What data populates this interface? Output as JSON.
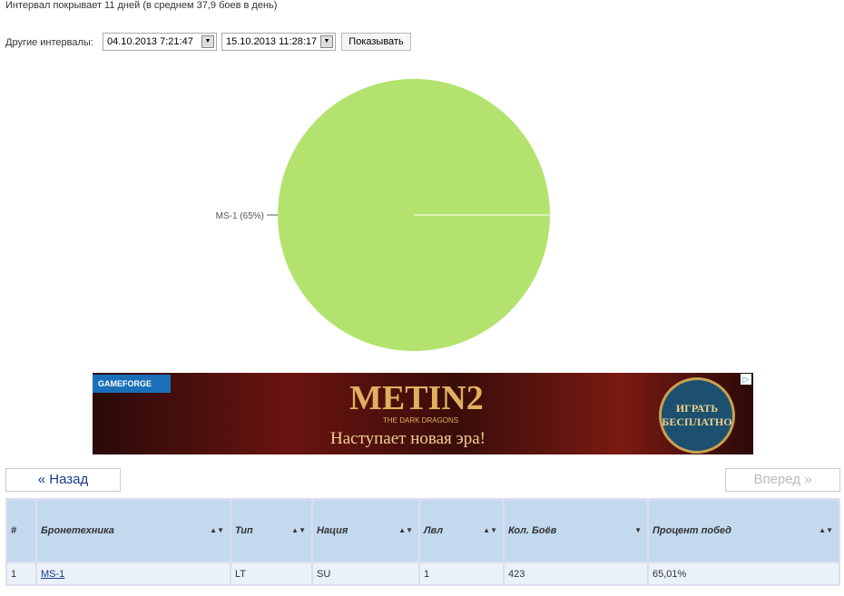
{
  "summary": "Интервал покрывает 11 дней (в среднем 37,9 боев в день)",
  "intervals": {
    "label": "Другие интервалы:",
    "from": "04.10.2013 7:21:47",
    "to": "15.10.2013 11:28:17",
    "show_button": "Показывать"
  },
  "chart_data": {
    "type": "pie",
    "slices": [
      {
        "label": "MS-1 (65%)",
        "value": 100,
        "color": "#b3e36e"
      }
    ]
  },
  "ad": {
    "brand": "GAMEFORGE",
    "title": "METIN2",
    "subtitle": "THE DARK DRAGONS",
    "slogan": "Наступает новая эра!",
    "cta": "ИГРАТЬ БЕСПЛАТНО"
  },
  "nav": {
    "back": "« Назад",
    "forward": "Вперед »"
  },
  "table": {
    "headers": [
      "#",
      "Бронетехника",
      "Тип",
      "Нация",
      "Лвл",
      "Кол. Боёв",
      "Процент побед"
    ],
    "rows": [
      [
        "1",
        "MS-1",
        "LT",
        "SU",
        "1",
        "423",
        "65,01%"
      ]
    ]
  }
}
